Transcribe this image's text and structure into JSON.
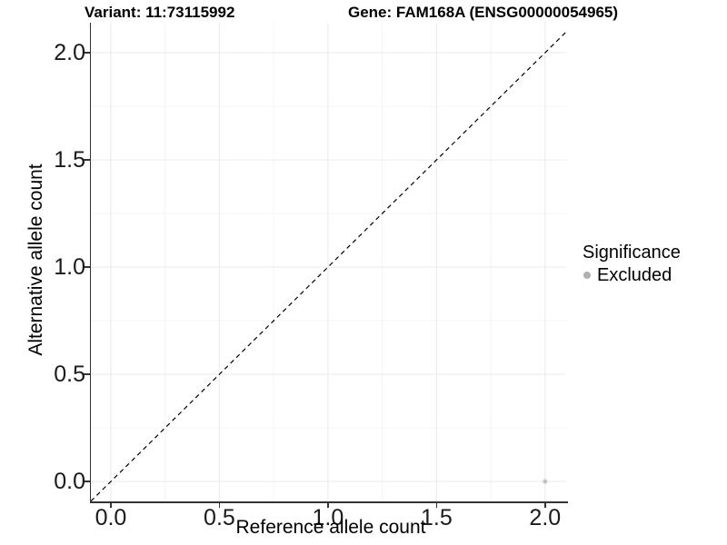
{
  "titles": {
    "variant": "Variant: 11:73115992",
    "gene": "Gene: FAM168A (ENSG00000054965)"
  },
  "axes": {
    "x_label": "Reference allele count",
    "y_label": "Alternative allele count"
  },
  "legend": {
    "title": "Significance",
    "items": [
      {
        "label": "Excluded",
        "color": "#b0b0b0"
      }
    ]
  },
  "chart_data": {
    "type": "scatter",
    "title_left": "Variant: 11:73115992",
    "title_right": "Gene: FAM168A (ENSG00000054965)",
    "xlabel": "Reference allele count",
    "ylabel": "Alternative allele count",
    "x_ticks": [
      0,
      0.5,
      1,
      1.5,
      2
    ],
    "x_tick_labels": [
      "0.0",
      "0.5",
      "1.0",
      "1.5",
      "2.0"
    ],
    "y_ticks": [
      0,
      0.5,
      1,
      1.5,
      2
    ],
    "y_tick_labels": [
      "0.0",
      "0.5",
      "1.0",
      "1.5",
      "2.0"
    ],
    "xlim": [
      -0.092,
      2.097
    ],
    "ylim": [
      -0.093,
      2.14
    ],
    "grid": {
      "major_color": "#ececec",
      "minor_color": "#f4f4f4",
      "minor_at_midpoints": true
    },
    "reference_line": {
      "type": "identity",
      "dashed": true,
      "color": "#000000"
    },
    "series": [
      {
        "name": "Excluded",
        "color": "#c2c2c2",
        "points": [
          {
            "x": 2,
            "y": 0
          }
        ]
      }
    ],
    "legend_title": "Significance",
    "legend_position": "right"
  },
  "colors": {
    "axis_line": "#333333",
    "tick_label": "#1a1a1a",
    "point": "#c2c2c2",
    "legend_key": "#b0b0b0"
  }
}
